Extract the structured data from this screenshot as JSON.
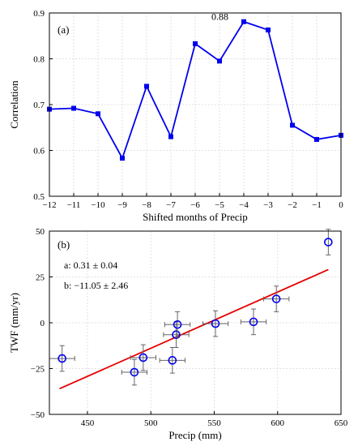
{
  "chart_data": [
    {
      "type": "line",
      "panel_label": "(a)",
      "xlabel": "Shifted months of Precip",
      "ylabel": "Correlation",
      "xlim": [
        -12,
        0
      ],
      "ylim": [
        0.5,
        0.9
      ],
      "xticks": [
        "-12",
        "-11",
        "-10",
        "-9",
        "-8",
        "-7",
        "-6",
        "-5",
        "-4",
        "-3",
        "-2",
        "-1",
        "0"
      ],
      "yticks": [
        "0.5",
        "0.6",
        "0.7",
        "0.8",
        "0.9"
      ],
      "grid": true,
      "color": "#0000ee",
      "annotation": "0.88",
      "x": [
        -12,
        -11,
        -10,
        -9,
        -8,
        -7,
        -6,
        -5,
        -4,
        -3,
        -2,
        -1,
        0
      ],
      "y": [
        0.69,
        0.692,
        0.68,
        0.583,
        0.74,
        0.63,
        0.833,
        0.795,
        0.881,
        0.863,
        0.655,
        0.624,
        0.633
      ]
    },
    {
      "type": "scatter",
      "panel_label": "(b)",
      "xlabel": "Precip (mm)",
      "ylabel": "TWF (mm/yr)",
      "xlim": [
        420,
        650
      ],
      "ylim": [
        -50,
        50
      ],
      "xticks": [
        "450",
        "500",
        "550",
        "600",
        "650"
      ],
      "yticks": [
        "-50",
        "-25",
        "0",
        "25",
        "50"
      ],
      "grid": true,
      "marker_color": "#0000ee",
      "fit_color": "#e60000",
      "fit_text_a": "a: 0.31 ± 0.04",
      "fit_text_b": "b: −11.05 ± 2.46",
      "fit": {
        "slope": 0.31,
        "intercept_label": -11.05,
        "x_range": [
          428,
          640
        ],
        "y_at_start": -36,
        "y_at_end": 29
      },
      "points": [
        {
          "x": 430,
          "y": -19.5,
          "xerr": 10,
          "yerr": 7
        },
        {
          "x": 487,
          "y": -27,
          "xerr": 10,
          "yerr": 7
        },
        {
          "x": 494,
          "y": -19,
          "xerr": 10,
          "yerr": 7
        },
        {
          "x": 517,
          "y": -20.5,
          "xerr": 10,
          "yerr": 7
        },
        {
          "x": 520,
          "y": -6.5,
          "xerr": 10,
          "yerr": 7
        },
        {
          "x": 521,
          "y": -1,
          "xerr": 10,
          "yerr": 7
        },
        {
          "x": 551,
          "y": -0.5,
          "xerr": 10,
          "yerr": 7
        },
        {
          "x": 581,
          "y": 0.5,
          "xerr": 10,
          "yerr": 7
        },
        {
          "x": 599,
          "y": 13,
          "xerr": 10,
          "yerr": 7
        },
        {
          "x": 640,
          "y": 44,
          "xerr": 0,
          "yerr": 7
        }
      ]
    }
  ]
}
